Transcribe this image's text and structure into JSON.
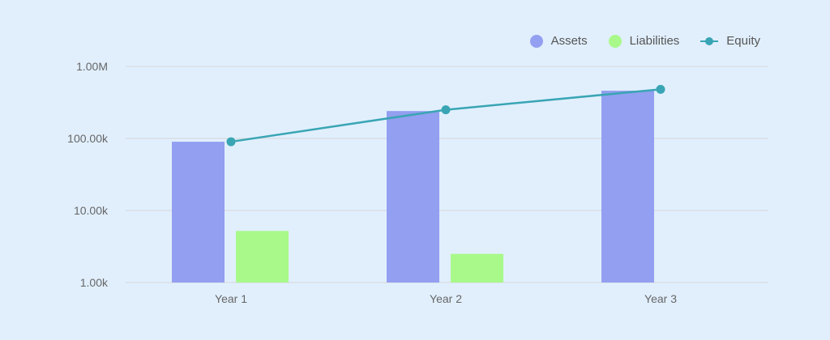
{
  "chart_data": {
    "type": "bar",
    "title": "",
    "xlabel": "",
    "ylabel": "",
    "yscale": "log",
    "ylim": [
      1000,
      1000000
    ],
    "yticks": [
      {
        "value": 1000,
        "label": "1.00k"
      },
      {
        "value": 10000,
        "label": "10.00k"
      },
      {
        "value": 100000,
        "label": "100.00k"
      },
      {
        "value": 1000000,
        "label": "1.00M"
      }
    ],
    "grid": true,
    "legend_position": "top-right",
    "categories": [
      "Year 1",
      "Year 2",
      "Year 3"
    ],
    "series": [
      {
        "name": "Assets",
        "type": "bar",
        "color": "#939ff0",
        "values": [
          90000,
          240000,
          460000
        ]
      },
      {
        "name": "Liabilities",
        "type": "bar",
        "color": "#a8f98a",
        "values": [
          5200,
          2500,
          null
        ]
      },
      {
        "name": "Equity",
        "type": "line",
        "color": "#39a5b4",
        "values": [
          90000,
          250000,
          480000
        ]
      }
    ]
  },
  "legend": {
    "items": [
      {
        "label": "Assets",
        "color": "#939ff0",
        "marker": "circle"
      },
      {
        "label": "Liabilities",
        "color": "#a8f98a",
        "marker": "circle"
      },
      {
        "label": "Equity",
        "color": "#39a5b4",
        "marker": "line"
      }
    ]
  }
}
